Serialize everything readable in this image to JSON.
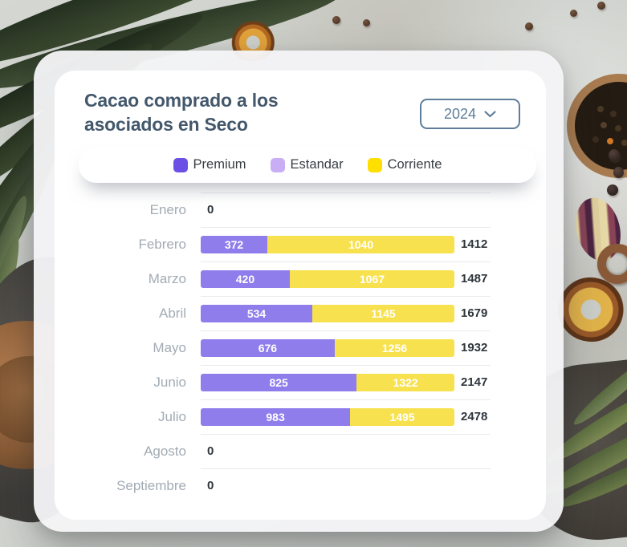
{
  "header": {
    "title": "Cacao comprado a los asociados en Seco",
    "year_selector": {
      "value": "2024",
      "icon": "chevron-down-icon"
    }
  },
  "legend": {
    "items": [
      {
        "label": "Premium",
        "color": "#6C50E5"
      },
      {
        "label": "Estandar",
        "color": "#C9AEF5"
      },
      {
        "label": "Corriente",
        "color": "#FFDF00"
      }
    ]
  },
  "colors": {
    "premium_bar": "#8F7DEB",
    "corriente_bar": "#F8E14E",
    "title": "#44586C",
    "outline": "#5E7D9B"
  },
  "chart_data": {
    "type": "bar",
    "subtype": "horizontal-stacked",
    "title": "Cacao comprado a los asociados en Seco",
    "year": "2024",
    "legend_position": "top",
    "categories": [
      "Enero",
      "Febrero",
      "Marzo",
      "Abril",
      "Mayo",
      "Junio",
      "Julio",
      "Agosto",
      "Septiembre"
    ],
    "series": [
      {
        "name": "Premium",
        "values": [
          0,
          372,
          420,
          534,
          676,
          825,
          983,
          0,
          0
        ]
      },
      {
        "name": "Estandar",
        "values": [
          0,
          0,
          0,
          0,
          0,
          0,
          0,
          0,
          0
        ]
      },
      {
        "name": "Corriente",
        "values": [
          0,
          1040,
          1067,
          1145,
          1256,
          1322,
          1495,
          0,
          0
        ]
      }
    ],
    "totals": [
      0,
      1412,
      1487,
      1679,
      1932,
      2147,
      2478,
      0,
      0
    ],
    "rows": [
      {
        "month": "Enero",
        "premium": 0,
        "corriente": 0,
        "premium_label": "",
        "corriente_label": "",
        "total_label": "0",
        "premium_pct": 0,
        "zero": true
      },
      {
        "month": "Febrero",
        "premium": 372,
        "corriente": 1040,
        "premium_label": "372",
        "corriente_label": "1040",
        "total_label": "1412",
        "premium_pct": 26.3,
        "zero": false
      },
      {
        "month": "Marzo",
        "premium": 420,
        "corriente": 1067,
        "premium_label": "420",
        "corriente_label": "1067",
        "total_label": "1487",
        "premium_pct": 35.1,
        "zero": false
      },
      {
        "month": "Abril",
        "premium": 534,
        "corriente": 1145,
        "premium_label": "534",
        "corriente_label": "1145",
        "total_label": "1679",
        "premium_pct": 44.0,
        "zero": false
      },
      {
        "month": "Mayo",
        "premium": 676,
        "corriente": 1256,
        "premium_label": "676",
        "corriente_label": "1256",
        "total_label": "1932",
        "premium_pct": 52.8,
        "zero": false
      },
      {
        "month": "Junio",
        "premium": 825,
        "corriente": 1322,
        "premium_label": "825",
        "corriente_label": "1322",
        "total_label": "2147",
        "premium_pct": 61.5,
        "zero": false
      },
      {
        "month": "Julio",
        "premium": 983,
        "corriente": 1495,
        "premium_label": "983",
        "corriente_label": "1495",
        "total_label": "2478",
        "premium_pct": 58.9,
        "zero": false
      },
      {
        "month": "Agosto",
        "premium": 0,
        "corriente": 0,
        "premium_label": "",
        "corriente_label": "",
        "total_label": "0",
        "premium_pct": 0,
        "zero": true
      },
      {
        "month": "Septiembre",
        "premium": 0,
        "corriente": 0,
        "premium_label": "",
        "corriente_label": "",
        "total_label": "0",
        "premium_pct": 0,
        "zero": true
      }
    ]
  }
}
